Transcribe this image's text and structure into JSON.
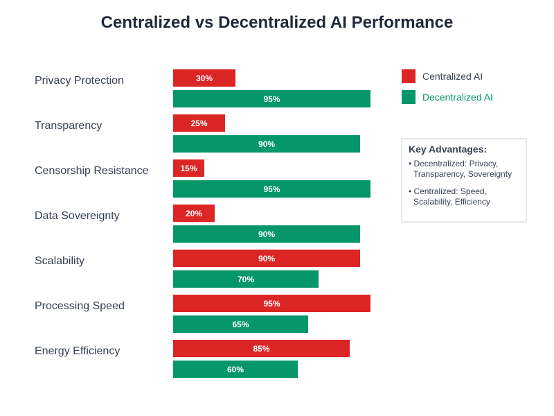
{
  "chart_data": {
    "type": "bar",
    "orientation": "horizontal",
    "title": "Centralized vs Decentralized AI Performance",
    "categories": [
      "Privacy Protection",
      "Transparency",
      "Censorship Resistance",
      "Data Sovereignty",
      "Scalability",
      "Processing Speed",
      "Energy Efficiency"
    ],
    "series": [
      {
        "name": "Centralized AI",
        "color": "#dc2626",
        "values": [
          30,
          25,
          15,
          20,
          90,
          95,
          85
        ]
      },
      {
        "name": "Decentralized AI",
        "color": "#059669",
        "values": [
          95,
          90,
          95,
          90,
          70,
          65,
          60
        ]
      }
    ],
    "value_suffix": "%",
    "xlim": [
      0,
      100
    ],
    "grid": false,
    "legend_placement": "right"
  },
  "key_box": {
    "title": "Key Advantages:",
    "items": [
      {
        "line1": "• Decentralized: Privacy,",
        "line2": "Transparency, Sovereignty"
      },
      {
        "line1": "• Centralized: Speed,",
        "line2": "Scalability, Efficiency"
      }
    ]
  }
}
